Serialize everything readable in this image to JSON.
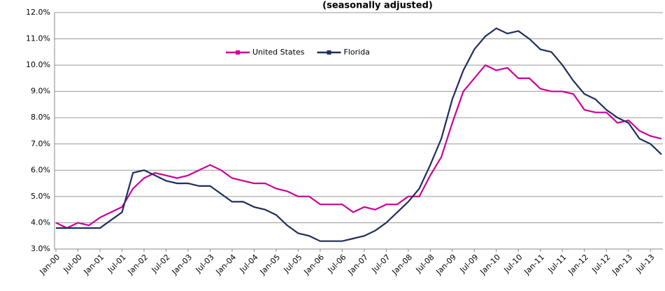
{
  "chart_data": {
    "type": "line",
    "subtitle": "(seasonally adjusted)",
    "categories": [
      "Jan-00",
      null,
      "Jul-00",
      null,
      "Jan-01",
      null,
      "Jul-01",
      null,
      "Jan-02",
      null,
      "Jul-02",
      null,
      "Jan-03",
      null,
      "Jul-03",
      null,
      "Jan-04",
      null,
      "Jul-04",
      null,
      "Jan-05",
      null,
      "Jul-05",
      null,
      "Jan-06",
      null,
      "Jul-06",
      null,
      "Jan-07",
      null,
      "Jul-07",
      null,
      "Jan-08",
      null,
      "Jul-08",
      null,
      "Jan-09",
      null,
      "Jul-09",
      null,
      "Jan-10",
      null,
      "Jul-10",
      null,
      "Jan-11",
      null,
      "Jul-11",
      null,
      "Jan-12",
      null,
      "Jul-12",
      null,
      "Jan-13",
      null,
      "Jul-13",
      null
    ],
    "series": [
      {
        "name": "United States",
        "color": "#cc0099",
        "values": [
          4.0,
          3.8,
          4.0,
          3.9,
          4.2,
          4.4,
          4.6,
          5.3,
          5.7,
          5.9,
          5.8,
          5.7,
          5.8,
          6.0,
          6.2,
          6.0,
          5.7,
          5.6,
          5.5,
          5.5,
          5.3,
          5.2,
          5.0,
          5.0,
          4.7,
          4.7,
          4.7,
          4.4,
          4.6,
          4.5,
          4.7,
          4.7,
          5.0,
          5.0,
          5.8,
          6.5,
          7.8,
          9.0,
          9.5,
          10.0,
          9.8,
          9.9,
          9.5,
          9.5,
          9.1,
          9.0,
          9.0,
          8.9,
          8.3,
          8.2,
          8.2,
          7.8,
          7.9,
          7.5,
          7.3,
          7.2
        ]
      },
      {
        "name": "Florida",
        "color": "#1f2e5c",
        "values": [
          3.8,
          3.8,
          3.8,
          3.8,
          3.8,
          4.1,
          4.4,
          5.9,
          6.0,
          5.8,
          5.6,
          5.5,
          5.5,
          5.4,
          5.4,
          5.1,
          4.8,
          4.8,
          4.6,
          4.5,
          4.3,
          3.9,
          3.6,
          3.5,
          3.3,
          3.3,
          3.3,
          3.4,
          3.5,
          3.7,
          4.0,
          4.4,
          4.8,
          5.3,
          6.2,
          7.2,
          8.7,
          9.8,
          10.6,
          11.1,
          11.4,
          11.2,
          11.3,
          11.0,
          10.6,
          10.5,
          10.0,
          9.4,
          8.9,
          8.7,
          8.3,
          8.0,
          7.8,
          7.2,
          7.0,
          6.6
        ]
      }
    ],
    "ylim": [
      3,
      12
    ],
    "yticks": [
      {
        "value": 3,
        "label": "3.0%"
      },
      {
        "value": 4,
        "label": "4.0%"
      },
      {
        "value": 5,
        "label": "5.0%"
      },
      {
        "value": 6,
        "label": "6.0%"
      },
      {
        "value": 7,
        "label": "7.0%"
      },
      {
        "value": 8,
        "label": "8.0%"
      },
      {
        "value": 9,
        "label": "9.0%"
      },
      {
        "value": 10,
        "label": "10.0%"
      },
      {
        "value": 11,
        "label": "11.0%"
      },
      {
        "value": 12,
        "label": "12.0%"
      }
    ],
    "grid": true,
    "legend": "top"
  }
}
